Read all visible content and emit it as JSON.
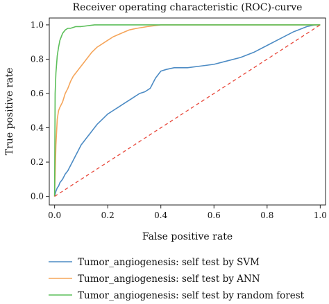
{
  "chart_data": {
    "type": "line",
    "title": "Receiver operating characteristic (ROC)-curve",
    "xlabel": "False positive rate",
    "ylabel": "True positive rate",
    "xlim": [
      -0.02,
      1.02
    ],
    "ylim": [
      -0.05,
      1.04
    ],
    "xticks": [
      0.0,
      0.2,
      0.4,
      0.6,
      0.8,
      1.0
    ],
    "xtick_labels": [
      "0.0",
      "0.2",
      "0.4",
      "0.6",
      "0.8",
      "1.0"
    ],
    "yticks": [
      0.0,
      0.2,
      0.4,
      0.6,
      0.8,
      1.0
    ],
    "ytick_labels": [
      "0.0",
      "0.2",
      "0.4",
      "0.6",
      "0.8",
      "1.0"
    ],
    "grid": false,
    "legend_position": "below",
    "series": [
      {
        "name": "Tumor_angiogenesis: self test by SVM",
        "color": "#4c8bc4",
        "x": [
          0.0,
          0.005,
          0.01,
          0.015,
          0.02,
          0.03,
          0.04,
          0.05,
          0.06,
          0.07,
          0.08,
          0.09,
          0.1,
          0.12,
          0.14,
          0.16,
          0.18,
          0.2,
          0.22,
          0.24,
          0.26,
          0.28,
          0.3,
          0.32,
          0.34,
          0.36,
          0.37,
          0.38,
          0.39,
          0.4,
          0.42,
          0.45,
          0.5,
          0.55,
          0.6,
          0.65,
          0.7,
          0.75,
          0.8,
          0.85,
          0.9,
          0.95,
          0.98,
          1.0
        ],
        "y": [
          0.0,
          0.03,
          0.05,
          0.06,
          0.08,
          0.1,
          0.13,
          0.15,
          0.18,
          0.21,
          0.24,
          0.27,
          0.3,
          0.34,
          0.38,
          0.42,
          0.45,
          0.48,
          0.5,
          0.52,
          0.54,
          0.56,
          0.58,
          0.6,
          0.61,
          0.63,
          0.66,
          0.69,
          0.71,
          0.73,
          0.74,
          0.75,
          0.75,
          0.76,
          0.77,
          0.79,
          0.81,
          0.84,
          0.88,
          0.92,
          0.96,
          0.99,
          1.0,
          1.0
        ]
      },
      {
        "name": "Tumor_angiogenesis: self test by ANN",
        "color": "#f5a55a",
        "x": [
          0.0,
          0.005,
          0.01,
          0.015,
          0.02,
          0.03,
          0.04,
          0.05,
          0.06,
          0.07,
          0.08,
          0.1,
          0.12,
          0.14,
          0.16,
          0.18,
          0.2,
          0.22,
          0.25,
          0.28,
          0.31,
          0.35,
          0.4,
          0.5,
          0.6,
          0.7,
          0.8,
          0.9,
          1.0
        ],
        "y": [
          0.0,
          0.3,
          0.45,
          0.5,
          0.52,
          0.55,
          0.6,
          0.63,
          0.67,
          0.7,
          0.72,
          0.76,
          0.8,
          0.84,
          0.87,
          0.89,
          0.91,
          0.93,
          0.95,
          0.97,
          0.98,
          0.99,
          1.0,
          1.0,
          1.0,
          1.0,
          1.0,
          1.0,
          1.0
        ]
      },
      {
        "name": "Tumor_angiogenesis: self test by random forest",
        "color": "#5cbf5a",
        "x": [
          0.0,
          0.002,
          0.005,
          0.008,
          0.01,
          0.015,
          0.02,
          0.03,
          0.04,
          0.05,
          0.06,
          0.08,
          0.1,
          0.15,
          0.2,
          0.3,
          0.4,
          0.5,
          0.6,
          0.7,
          0.8,
          0.9,
          1.0
        ],
        "y": [
          0.0,
          0.6,
          0.72,
          0.78,
          0.82,
          0.87,
          0.91,
          0.95,
          0.97,
          0.98,
          0.98,
          0.99,
          0.99,
          1.0,
          1.0,
          1.0,
          1.0,
          1.0,
          1.0,
          1.0,
          1.0,
          1.0,
          1.0
        ]
      },
      {
        "name": "",
        "color": "#e8473a",
        "dashed": true,
        "x": [
          0.0,
          1.0
        ],
        "y": [
          0.0,
          1.0
        ]
      }
    ]
  }
}
